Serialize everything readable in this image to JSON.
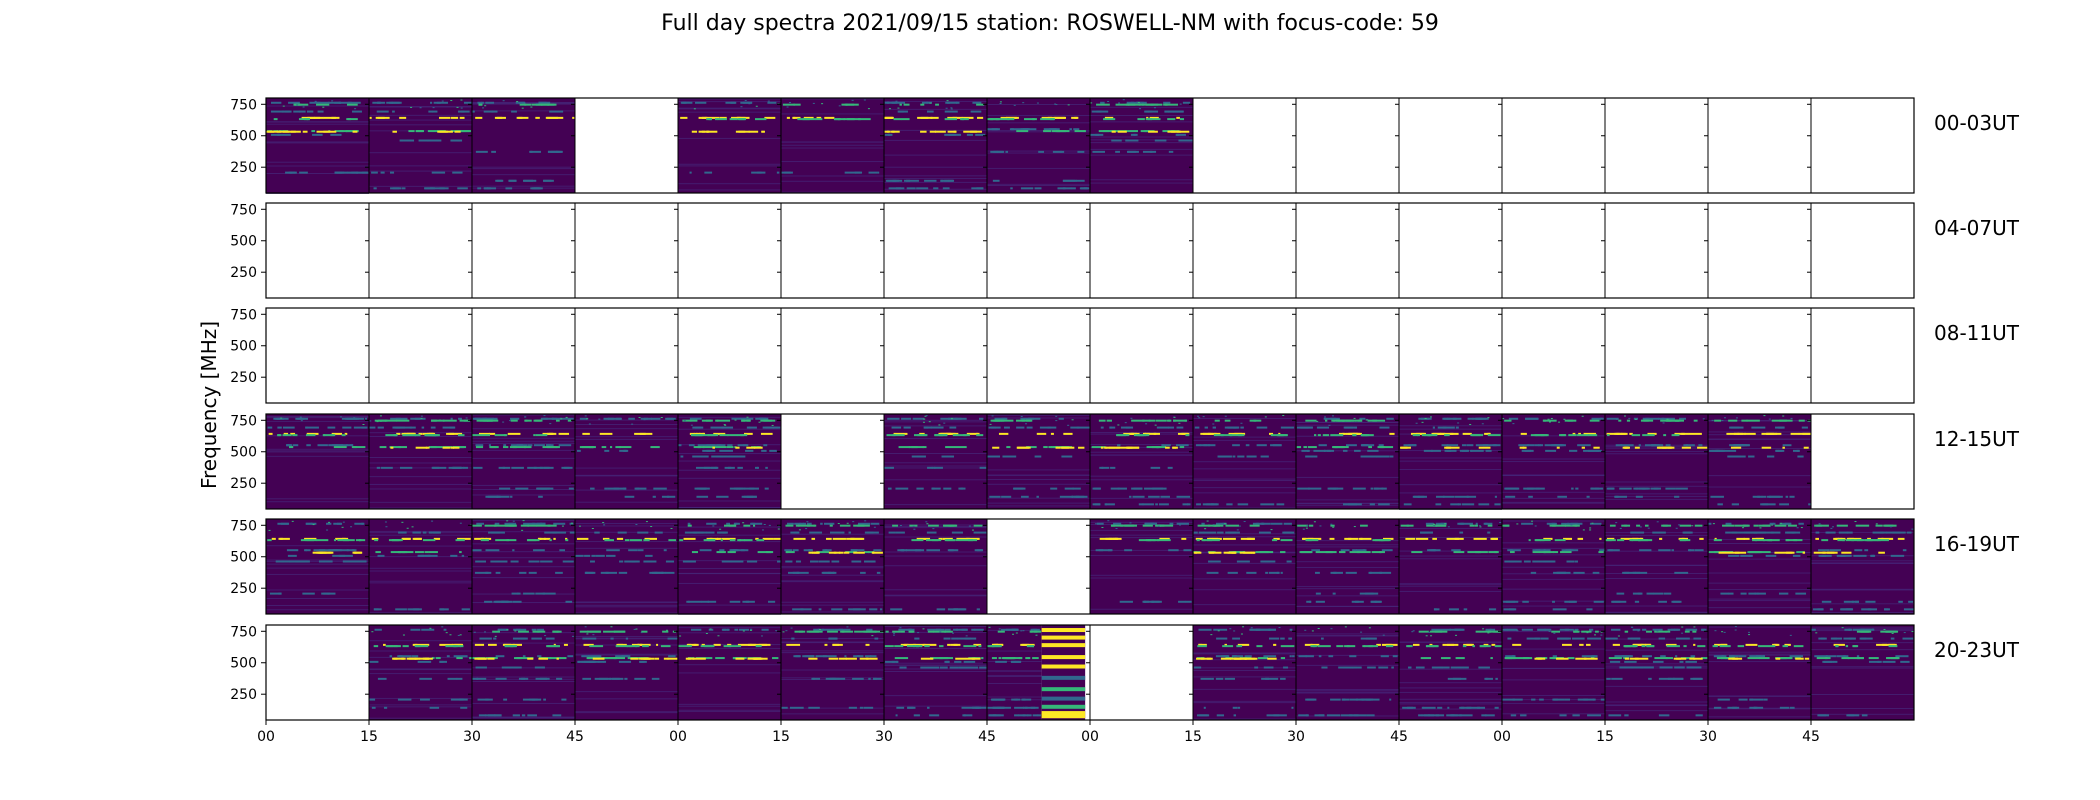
{
  "chart_data": {
    "type": "heatmap",
    "title": "Full day spectra 2021/09/15 station: ROSWELL-NM with focus-code: 59",
    "ylabel": "Frequency [MHz]",
    "y_ticks": [
      "750",
      "500",
      "250"
    ],
    "y_tick_values": [
      750,
      500,
      250
    ],
    "ylim": [
      45,
      800
    ],
    "x_ticks": [
      "00",
      "15",
      "30",
      "45",
      "00",
      "15",
      "30",
      "45",
      "00",
      "15",
      "30",
      "45",
      "00",
      "15",
      "30",
      "45"
    ],
    "minutes_per_panel": 15,
    "rows": [
      {
        "label": "00-03UT",
        "panels": [
          1,
          1,
          1,
          0,
          1,
          1,
          1,
          1,
          1,
          0,
          0,
          0,
          0,
          0,
          0,
          0
        ]
      },
      {
        "label": "04-07UT",
        "panels": [
          0,
          0,
          0,
          0,
          0,
          0,
          0,
          0,
          0,
          0,
          0,
          0,
          0,
          0,
          0,
          0
        ]
      },
      {
        "label": "08-11UT",
        "panels": [
          0,
          0,
          0,
          0,
          0,
          0,
          0,
          0,
          0,
          0,
          0,
          0,
          0,
          0,
          0,
          0
        ]
      },
      {
        "label": "12-15UT",
        "panels": [
          1,
          1,
          1,
          1,
          1,
          0,
          1,
          1,
          1,
          1,
          1,
          1,
          1,
          1,
          1,
          0
        ]
      },
      {
        "label": "16-19UT",
        "panels": [
          1,
          1,
          1,
          1,
          1,
          1,
          1,
          0,
          1,
          1,
          1,
          1,
          1,
          1,
          1,
          1
        ]
      },
      {
        "label": "20-23UT",
        "panels": [
          0,
          1,
          1,
          1,
          1,
          1,
          1,
          1,
          0,
          1,
          1,
          1,
          1,
          1,
          1,
          1
        ]
      }
    ],
    "partial_panel": {
      "row": 5,
      "col": 7,
      "data_start_fraction": 0,
      "data_end_fraction": 0.53,
      "banded_from_fraction": 0.53
    },
    "colormap": "viridis",
    "colors": {
      "background": "#440154",
      "low": "#46287a",
      "mid": "#31688e",
      "cyan": "#35b779",
      "yellow": "#fde725"
    },
    "grid": false
  }
}
